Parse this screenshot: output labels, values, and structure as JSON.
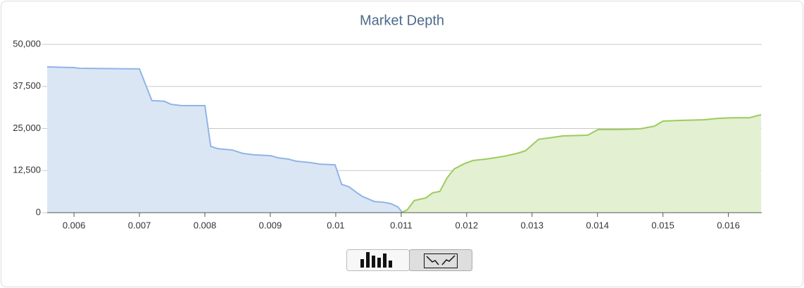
{
  "chart_data": {
    "type": "area",
    "title": "Market Depth",
    "xlim": [
      0.00559,
      0.01651
    ],
    "ylim": [
      0,
      50000
    ],
    "xticks": [
      0.006,
      0.007,
      0.008,
      0.009,
      0.01,
      0.011,
      0.012,
      0.013,
      0.014,
      0.015,
      0.016
    ],
    "yticks": [
      0,
      {
        "value": 12500,
        "label": "12,500"
      },
      {
        "value": 25000,
        "label": "25,000"
      },
      {
        "value": 37500,
        "label": "37,500"
      },
      {
        "value": 50000,
        "label": "50,000"
      }
    ],
    "grid": true,
    "series": [
      {
        "color": "#90b4e6",
        "fill": "#dbe6f5",
        "x": [
          0.00559,
          0.006,
          0.00608,
          0.007,
          0.00719,
          0.00738,
          0.00748,
          0.00765,
          0.008,
          0.00809,
          0.0082,
          0.00842,
          0.00858,
          0.00874,
          0.00901,
          0.00912,
          0.00928,
          0.00939,
          0.0096,
          0.00976,
          0.00999,
          0.01009,
          0.0102,
          0.01031,
          0.01041,
          0.01059,
          0.01073,
          0.01084,
          0.01095,
          0.01102
        ],
        "values": [
          43300,
          43100,
          42900,
          42700,
          33300,
          33100,
          32200,
          31800,
          31800,
          19700,
          19000,
          18600,
          17600,
          17200,
          16900,
          16300,
          15900,
          15300,
          14900,
          14400,
          14200,
          8400,
          7700,
          6100,
          4800,
          3300,
          3100,
          2700,
          1700,
          0
        ]
      },
      {
        "color": "#9ccc5e",
        "fill": "#e3f0d2",
        "x": [
          0.011,
          0.01109,
          0.0112,
          0.01138,
          0.01148,
          0.01159,
          0.0117,
          0.01181,
          0.01197,
          0.0121,
          0.01229,
          0.01256,
          0.01277,
          0.0129,
          0.0131,
          0.01326,
          0.01347,
          0.01385,
          0.01401,
          0.01433,
          0.01465,
          0.01487,
          0.015,
          0.01525,
          0.01562,
          0.01584,
          0.01605,
          0.01632,
          0.0165
        ],
        "values": [
          0,
          800,
          3600,
          4400,
          5900,
          6300,
          10300,
          13000,
          14600,
          15500,
          15900,
          16700,
          17600,
          18400,
          21800,
          22200,
          22800,
          23000,
          24700,
          24700,
          24900,
          25700,
          27200,
          27400,
          27600,
          28000,
          28200,
          28200,
          29100
        ]
      }
    ]
  }
}
